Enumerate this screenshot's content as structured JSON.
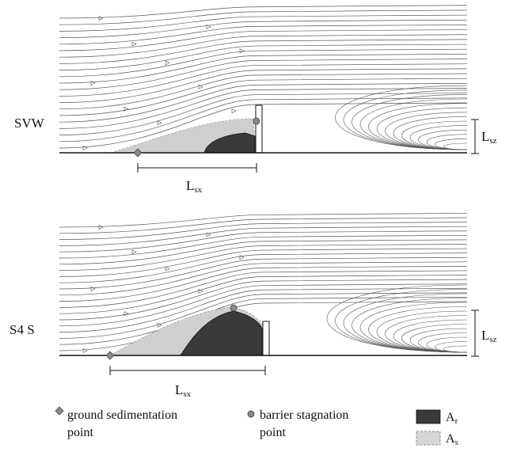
{
  "panels": [
    {
      "label": "SVW",
      "sx_label_main": "L",
      "sx_label_sub": "sx",
      "sz_label_main": "L",
      "sz_label_sub": "sz"
    },
    {
      "label": "S4 S",
      "sx_label_main": "L",
      "sx_label_sub": "sx",
      "sz_label_main": "L",
      "sz_label_sub": "sz"
    }
  ],
  "legend": {
    "ground_line1": "ground sedimentation",
    "ground_line2": "point",
    "barrier_line1": "barrier stagnation",
    "barrier_line2": "point",
    "ar_main": "A",
    "ar_sub": "r",
    "as_main": "A",
    "as_sub": "s"
  },
  "colors": {
    "streamline": "#555555",
    "recirculation_fill": "#3a3a3a",
    "sediment_fill": "#cfcfcf",
    "ground_marker": "#8a8a8a",
    "barrier_marker": "#8a8a8a"
  }
}
